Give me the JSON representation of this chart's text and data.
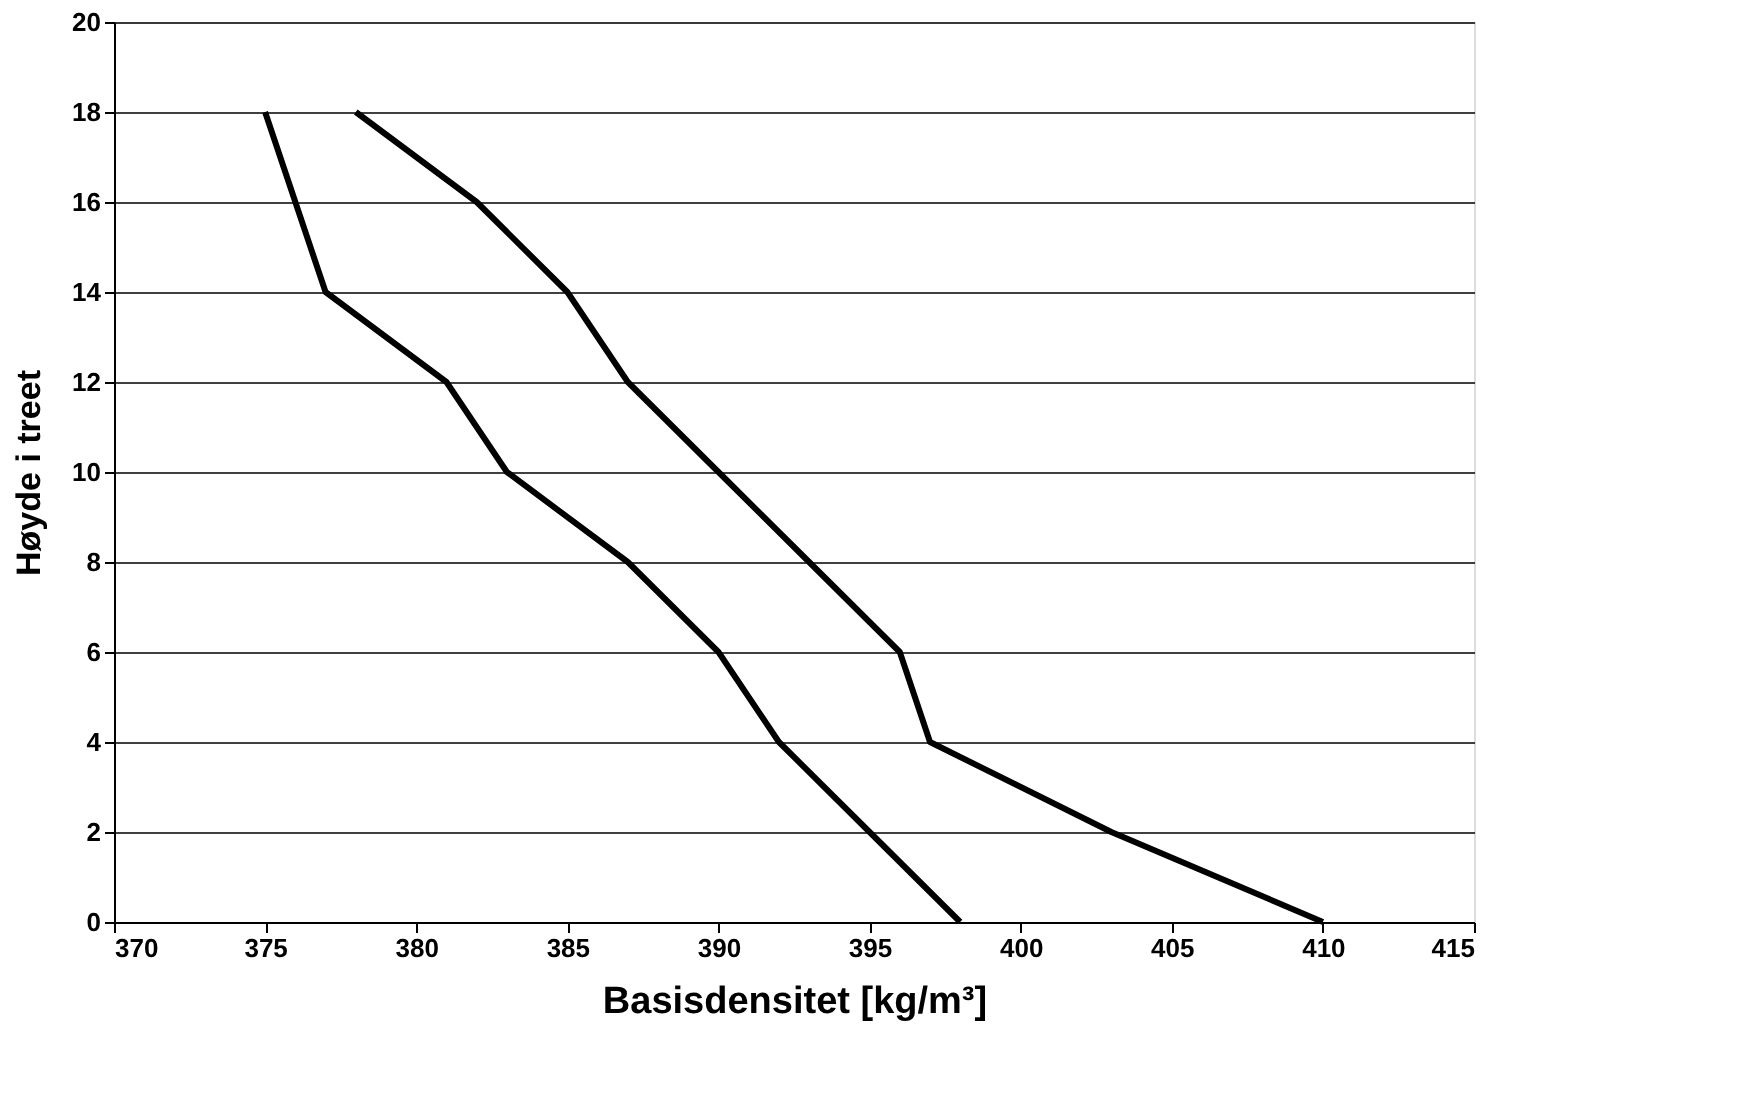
{
  "chart_data": {
    "type": "line",
    "xlabel": "Basisdensitet [kg/m³]",
    "ylabel": "Høyde i treet",
    "series": [
      {
        "color": "#000000",
        "x": [
          410,
          403,
          397,
          396,
          393,
          390,
          387,
          385,
          382,
          378
        ],
        "values": [
          0,
          2,
          4,
          6,
          8,
          10,
          12,
          14,
          16,
          18
        ]
      },
      {
        "color": "#000000",
        "x": [
          398,
          395,
          392,
          390,
          387,
          383,
          381,
          377,
          376,
          375
        ],
        "values": [
          0,
          2,
          4,
          6,
          8,
          10,
          12,
          14,
          16,
          18
        ]
      }
    ],
    "xlim": [
      370,
      415
    ],
    "xticks": [
      370,
      375,
      380,
      385,
      390,
      395,
      400,
      405,
      410,
      415
    ],
    "ylim": [
      0,
      20
    ],
    "yticks": [
      0,
      2,
      4,
      6,
      8,
      10,
      12,
      14,
      16,
      18,
      20
    ],
    "grid": "y",
    "legend": false,
    "marker": "none",
    "line_style": "solid"
  }
}
